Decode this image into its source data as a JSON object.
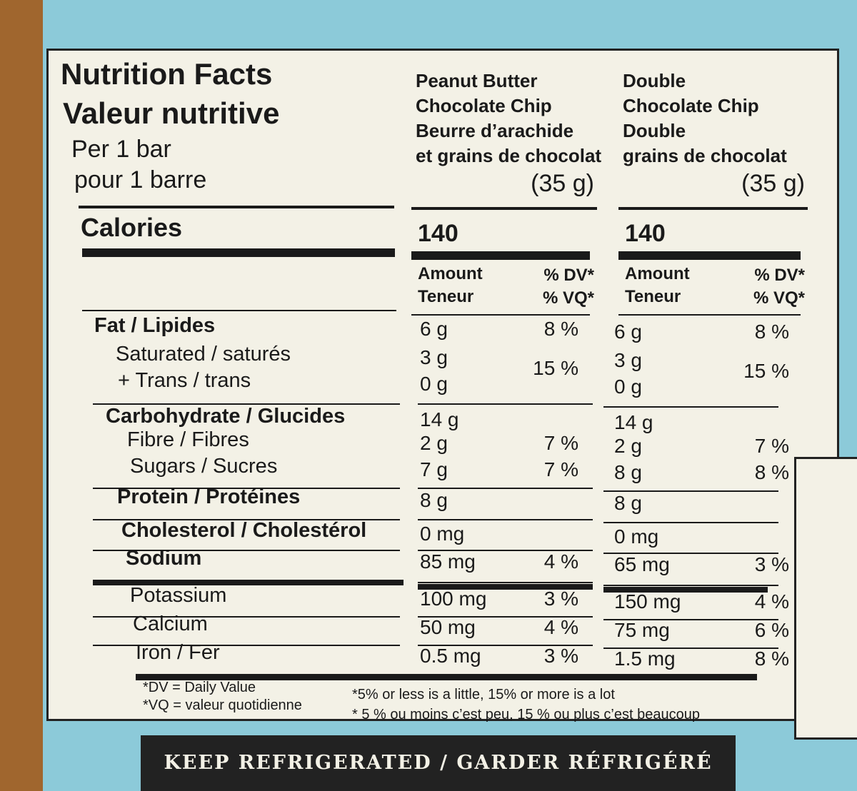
{
  "header": {
    "title": [
      "Nutrition Facts",
      "Valeur nutritive"
    ],
    "serving": [
      "Per 1 bar",
      "pour 1 barre"
    ]
  },
  "products": [
    {
      "name": [
        "Peanut Butter",
        "Chocolate Chip",
        "Beurre d’arachide",
        "et grains de chocolat"
      ],
      "size": "(35 g)",
      "calories": "140"
    },
    {
      "name": [
        "Double",
        "Chocolate Chip",
        "Double",
        "grains de chocolat"
      ],
      "size": "(35 g)",
      "calories": "140"
    }
  ],
  "calories_label": "Calories",
  "column_headers": {
    "amount": [
      "Amount",
      "Teneur"
    ],
    "dv": [
      "% DV*",
      "% VQ*"
    ]
  },
  "rows": [
    {
      "label": "Fat / Lipides",
      "products": [
        {
          "amount": "6 g",
          "dv": "8 %"
        },
        {
          "amount": "6 g",
          "dv": "8 %"
        }
      ]
    },
    {
      "label": "Saturated / saturés",
      "products": [
        {
          "amount": "3 g",
          "dv": "15 %"
        },
        {
          "amount": "3 g",
          "dv": "15 %"
        }
      ]
    },
    {
      "label": "+ Trans / trans",
      "products": [
        {
          "amount": "0 g"
        },
        {
          "amount": "0 g"
        }
      ]
    },
    {
      "label": "Carbohydrate / Glucides",
      "products": [
        {
          "amount": "14 g"
        },
        {
          "amount": "14 g"
        }
      ]
    },
    {
      "label": "Fibre / Fibres",
      "products": [
        {
          "amount": "2 g",
          "dv": "7 %"
        },
        {
          "amount": "2 g",
          "dv": "7 %"
        }
      ]
    },
    {
      "label": "Sugars / Sucres",
      "products": [
        {
          "amount": "7 g",
          "dv": "7 %"
        },
        {
          "amount": "8 g",
          "dv": "8 %"
        }
      ]
    },
    {
      "label": "Protein / Protéines",
      "products": [
        {
          "amount": "8 g"
        },
        {
          "amount": "8 g"
        }
      ]
    },
    {
      "label": "Cholesterol / Cholestérol",
      "products": [
        {
          "amount": "0 mg"
        },
        {
          "amount": "0 mg"
        }
      ]
    },
    {
      "label": "Sodium",
      "products": [
        {
          "amount": "85 mg",
          "dv": "4 %"
        },
        {
          "amount": "65 mg",
          "dv": "3 %"
        }
      ]
    },
    {
      "label": "Potassium",
      "products": [
        {
          "amount": "100 mg",
          "dv": "3 %"
        },
        {
          "amount": "150 mg",
          "dv": "4 %"
        }
      ]
    },
    {
      "label": "Calcium",
      "products": [
        {
          "amount": "50 mg",
          "dv": "4 %"
        },
        {
          "amount": "75 mg",
          "dv": "6 %"
        }
      ]
    },
    {
      "label": "Iron / Fer",
      "products": [
        {
          "amount": "0.5 mg",
          "dv": "3 %"
        },
        {
          "amount": "1.5 mg",
          "dv": "8 %"
        }
      ]
    }
  ],
  "footnotes": {
    "definitions": [
      "*DV = Daily Value",
      "*VQ = valeur quotidienne"
    ],
    "guide": [
      "*5% or less is a little, 15% or more is a lot",
      "* 5 % ou moins c’est peu, 15 % ou plus c’est beaucoup"
    ]
  },
  "banner": "KEEP REFRIGERATED / GARDER RÉFRIGÉRÉ"
}
